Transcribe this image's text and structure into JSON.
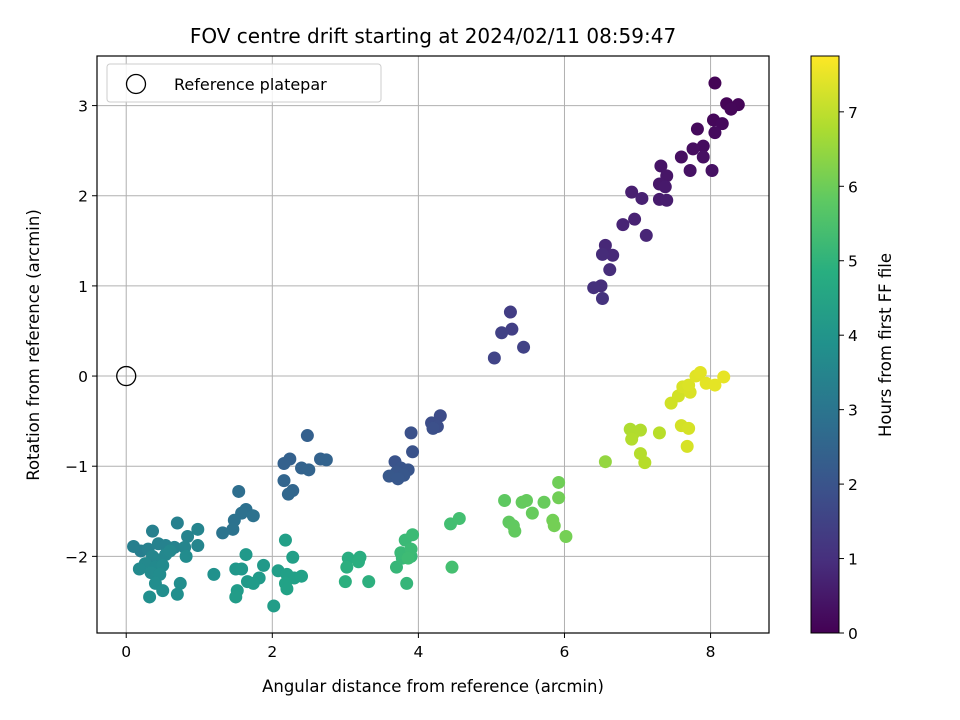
{
  "chart_data": {
    "type": "scatter",
    "title": "FOV centre drift starting at 2024/02/11 08:59:47",
    "xlabel": "Angular distance from reference (arcmin)",
    "ylabel": "Rotation from reference (arcmin)",
    "xlim": [
      -0.4,
      8.8
    ],
    "ylim": [
      -2.85,
      3.55
    ],
    "xticks": [
      0,
      2,
      4,
      6,
      8
    ],
    "yticks": [
      -2,
      -1,
      0,
      1,
      2,
      3
    ],
    "grid": true,
    "legend": {
      "placement": "upper-left",
      "entries": [
        "Reference platepar"
      ]
    },
    "reference_point": {
      "x": 0,
      "y": 0,
      "label": "Reference platepar"
    },
    "colorbar": {
      "label": "Hours from first FF file",
      "range": [
        0,
        7.75
      ],
      "ticks": [
        0,
        1,
        2,
        3,
        4,
        5,
        6,
        7
      ],
      "colormap": "viridis"
    },
    "points": [
      {
        "x": 8.06,
        "y": 3.25,
        "c": 0.05
      },
      {
        "x": 8.22,
        "y": 3.02,
        "c": 0.08
      },
      {
        "x": 8.38,
        "y": 3.01,
        "c": 0.1
      },
      {
        "x": 8.28,
        "y": 2.96,
        "c": 0.12
      },
      {
        "x": 8.04,
        "y": 2.84,
        "c": 0.15
      },
      {
        "x": 8.16,
        "y": 2.8,
        "c": 0.18
      },
      {
        "x": 7.82,
        "y": 2.74,
        "c": 0.2
      },
      {
        "x": 8.06,
        "y": 2.7,
        "c": 0.22
      },
      {
        "x": 7.9,
        "y": 2.55,
        "c": 0.25
      },
      {
        "x": 7.76,
        "y": 2.52,
        "c": 0.28
      },
      {
        "x": 7.6,
        "y": 2.43,
        "c": 0.3
      },
      {
        "x": 7.9,
        "y": 2.43,
        "c": 0.33
      },
      {
        "x": 8.02,
        "y": 2.28,
        "c": 0.36
      },
      {
        "x": 7.72,
        "y": 2.28,
        "c": 0.38
      },
      {
        "x": 7.32,
        "y": 2.33,
        "c": 0.42
      },
      {
        "x": 7.4,
        "y": 2.22,
        "c": 0.46
      },
      {
        "x": 7.3,
        "y": 2.13,
        "c": 0.5
      },
      {
        "x": 7.38,
        "y": 2.1,
        "c": 0.54
      },
      {
        "x": 7.3,
        "y": 1.96,
        "c": 0.58
      },
      {
        "x": 7.4,
        "y": 1.95,
        "c": 0.62
      },
      {
        "x": 6.92,
        "y": 2.04,
        "c": 0.66
      },
      {
        "x": 7.06,
        "y": 1.97,
        "c": 0.7
      },
      {
        "x": 6.96,
        "y": 1.74,
        "c": 0.74
      },
      {
        "x": 6.8,
        "y": 1.68,
        "c": 0.78
      },
      {
        "x": 7.12,
        "y": 1.56,
        "c": 0.82
      },
      {
        "x": 6.56,
        "y": 1.45,
        "c": 0.88
      },
      {
        "x": 6.66,
        "y": 1.34,
        "c": 0.92
      },
      {
        "x": 6.52,
        "y": 1.35,
        "c": 0.96
      },
      {
        "x": 6.62,
        "y": 1.18,
        "c": 1.0
      },
      {
        "x": 6.5,
        "y": 1.0,
        "c": 1.05
      },
      {
        "x": 6.4,
        "y": 0.98,
        "c": 1.1
      },
      {
        "x": 6.52,
        "y": 0.86,
        "c": 1.15
      },
      {
        "x": 5.26,
        "y": 0.71,
        "c": 1.4
      },
      {
        "x": 5.28,
        "y": 0.52,
        "c": 1.45
      },
      {
        "x": 5.14,
        "y": 0.48,
        "c": 1.48
      },
      {
        "x": 5.44,
        "y": 0.32,
        "c": 1.52
      },
      {
        "x": 5.04,
        "y": 0.2,
        "c": 1.56
      },
      {
        "x": 4.3,
        "y": -0.44,
        "c": 1.8
      },
      {
        "x": 4.18,
        "y": -0.52,
        "c": 1.83
      },
      {
        "x": 4.26,
        "y": -0.56,
        "c": 1.86
      },
      {
        "x": 4.2,
        "y": -0.58,
        "c": 1.89
      },
      {
        "x": 3.9,
        "y": -0.63,
        "c": 1.93
      },
      {
        "x": 3.92,
        "y": -0.84,
        "c": 1.97
      },
      {
        "x": 3.68,
        "y": -0.95,
        "c": 2.0
      },
      {
        "x": 3.76,
        "y": -1.02,
        "c": 2.03
      },
      {
        "x": 3.86,
        "y": -1.04,
        "c": 2.05
      },
      {
        "x": 3.7,
        "y": -1.07,
        "c": 2.08
      },
      {
        "x": 3.8,
        "y": -1.1,
        "c": 2.1
      },
      {
        "x": 3.6,
        "y": -1.11,
        "c": 2.12
      },
      {
        "x": 3.72,
        "y": -1.14,
        "c": 2.14
      },
      {
        "x": 2.48,
        "y": -0.66,
        "c": 2.35
      },
      {
        "x": 2.24,
        "y": -0.92,
        "c": 2.38
      },
      {
        "x": 2.16,
        "y": -0.97,
        "c": 2.4
      },
      {
        "x": 2.66,
        "y": -0.92,
        "c": 2.42
      },
      {
        "x": 2.74,
        "y": -0.93,
        "c": 2.44
      },
      {
        "x": 2.4,
        "y": -1.02,
        "c": 2.46
      },
      {
        "x": 2.5,
        "y": -1.04,
        "c": 2.48
      },
      {
        "x": 2.16,
        "y": -1.16,
        "c": 2.52
      },
      {
        "x": 2.28,
        "y": -1.27,
        "c": 2.55
      },
      {
        "x": 2.22,
        "y": -1.31,
        "c": 2.57
      },
      {
        "x": 1.54,
        "y": -1.28,
        "c": 2.8
      },
      {
        "x": 1.64,
        "y": -1.48,
        "c": 2.85
      },
      {
        "x": 1.58,
        "y": -1.52,
        "c": 2.88
      },
      {
        "x": 1.74,
        "y": -1.55,
        "c": 2.9
      },
      {
        "x": 1.48,
        "y": -1.6,
        "c": 2.92
      },
      {
        "x": 1.46,
        "y": -1.7,
        "c": 2.95
      },
      {
        "x": 1.32,
        "y": -1.74,
        "c": 2.98
      },
      {
        "x": 0.2,
        "y": -1.94,
        "c": 3.3
      },
      {
        "x": 0.1,
        "y": -1.89,
        "c": 3.32
      },
      {
        "x": 0.36,
        "y": -1.72,
        "c": 3.34
      },
      {
        "x": 0.7,
        "y": -1.63,
        "c": 3.36
      },
      {
        "x": 0.3,
        "y": -1.92,
        "c": 3.38
      },
      {
        "x": 0.44,
        "y": -1.86,
        "c": 3.4
      },
      {
        "x": 0.54,
        "y": -1.88,
        "c": 3.42
      },
      {
        "x": 0.66,
        "y": -1.9,
        "c": 3.44
      },
      {
        "x": 0.84,
        "y": -1.78,
        "c": 3.46
      },
      {
        "x": 0.98,
        "y": -1.7,
        "c": 3.48
      },
      {
        "x": 0.98,
        "y": -1.88,
        "c": 3.5
      },
      {
        "x": 0.8,
        "y": -1.9,
        "c": 3.52
      },
      {
        "x": 0.36,
        "y": -2.0,
        "c": 3.54
      },
      {
        "x": 0.44,
        "y": -2.04,
        "c": 3.56
      },
      {
        "x": 0.54,
        "y": -1.98,
        "c": 3.58
      },
      {
        "x": 0.6,
        "y": -1.94,
        "c": 3.6
      },
      {
        "x": 0.26,
        "y": -2.08,
        "c": 3.62
      },
      {
        "x": 0.4,
        "y": -2.12,
        "c": 3.64
      },
      {
        "x": 0.5,
        "y": -2.1,
        "c": 3.66
      },
      {
        "x": 0.18,
        "y": -2.14,
        "c": 3.68
      },
      {
        "x": 0.34,
        "y": -2.18,
        "c": 3.7
      },
      {
        "x": 0.46,
        "y": -2.2,
        "c": 3.72
      },
      {
        "x": 0.82,
        "y": -2.0,
        "c": 3.74
      },
      {
        "x": 0.4,
        "y": -2.3,
        "c": 3.76
      },
      {
        "x": 0.74,
        "y": -2.3,
        "c": 3.78
      },
      {
        "x": 0.5,
        "y": -2.38,
        "c": 3.8
      },
      {
        "x": 0.7,
        "y": -2.42,
        "c": 3.82
      },
      {
        "x": 0.32,
        "y": -2.45,
        "c": 3.84
      },
      {
        "x": 1.2,
        "y": -2.2,
        "c": 3.88
      },
      {
        "x": 1.5,
        "y": -2.14,
        "c": 4.1
      },
      {
        "x": 1.58,
        "y": -2.14,
        "c": 4.12
      },
      {
        "x": 1.64,
        "y": -1.98,
        "c": 4.14
      },
      {
        "x": 1.88,
        "y": -2.1,
        "c": 4.16
      },
      {
        "x": 1.82,
        "y": -2.24,
        "c": 4.18
      },
      {
        "x": 1.66,
        "y": -2.28,
        "c": 4.2
      },
      {
        "x": 1.74,
        "y": -2.3,
        "c": 4.22
      },
      {
        "x": 1.52,
        "y": -2.38,
        "c": 4.24
      },
      {
        "x": 1.5,
        "y": -2.45,
        "c": 4.26
      },
      {
        "x": 2.02,
        "y": -2.55,
        "c": 4.3
      },
      {
        "x": 2.08,
        "y": -2.16,
        "c": 4.32
      },
      {
        "x": 2.18,
        "y": -1.82,
        "c": 4.34
      },
      {
        "x": 2.28,
        "y": -2.01,
        "c": 4.36
      },
      {
        "x": 2.2,
        "y": -2.2,
        "c": 4.38
      },
      {
        "x": 2.3,
        "y": -2.24,
        "c": 4.4
      },
      {
        "x": 2.4,
        "y": -2.22,
        "c": 4.42
      },
      {
        "x": 2.18,
        "y": -2.3,
        "c": 4.44
      },
      {
        "x": 2.2,
        "y": -2.36,
        "c": 4.46
      },
      {
        "x": 3.04,
        "y": -2.02,
        "c": 4.8
      },
      {
        "x": 3.2,
        "y": -2.01,
        "c": 4.82
      },
      {
        "x": 3.18,
        "y": -2.06,
        "c": 4.84
      },
      {
        "x": 3.02,
        "y": -2.12,
        "c": 4.86
      },
      {
        "x": 3.0,
        "y": -2.28,
        "c": 4.88
      },
      {
        "x": 3.32,
        "y": -2.28,
        "c": 4.9
      },
      {
        "x": 3.84,
        "y": -2.3,
        "c": 5.1
      },
      {
        "x": 3.7,
        "y": -2.12,
        "c": 5.12
      },
      {
        "x": 3.78,
        "y": -2.02,
        "c": 5.14
      },
      {
        "x": 3.86,
        "y": -1.96,
        "c": 5.16
      },
      {
        "x": 3.9,
        "y": -2.0,
        "c": 5.18
      },
      {
        "x": 3.76,
        "y": -1.96,
        "c": 5.2
      },
      {
        "x": 3.82,
        "y": -1.82,
        "c": 5.22
      },
      {
        "x": 3.92,
        "y": -1.76,
        "c": 5.24
      },
      {
        "x": 3.9,
        "y": -1.92,
        "c": 5.26
      },
      {
        "x": 3.86,
        "y": -2.02,
        "c": 5.28
      },
      {
        "x": 4.44,
        "y": -1.64,
        "c": 5.4
      },
      {
        "x": 4.56,
        "y": -1.58,
        "c": 5.42
      },
      {
        "x": 4.46,
        "y": -2.12,
        "c": 5.44
      },
      {
        "x": 5.18,
        "y": -1.38,
        "c": 5.8
      },
      {
        "x": 5.24,
        "y": -1.62,
        "c": 5.82
      },
      {
        "x": 5.3,
        "y": -1.66,
        "c": 5.84
      },
      {
        "x": 5.32,
        "y": -1.72,
        "c": 5.86
      },
      {
        "x": 5.42,
        "y": -1.4,
        "c": 5.88
      },
      {
        "x": 5.48,
        "y": -1.38,
        "c": 5.9
      },
      {
        "x": 5.56,
        "y": -1.52,
        "c": 5.92
      },
      {
        "x": 5.72,
        "y": -1.4,
        "c": 5.94
      },
      {
        "x": 5.92,
        "y": -1.18,
        "c": 6.05
      },
      {
        "x": 5.92,
        "y": -1.35,
        "c": 6.07
      },
      {
        "x": 5.84,
        "y": -1.6,
        "c": 6.09
      },
      {
        "x": 5.86,
        "y": -1.66,
        "c": 6.11
      },
      {
        "x": 6.02,
        "y": -1.78,
        "c": 6.13
      },
      {
        "x": 6.56,
        "y": -0.95,
        "c": 6.5
      },
      {
        "x": 6.9,
        "y": -0.59,
        "c": 6.8
      },
      {
        "x": 6.94,
        "y": -0.64,
        "c": 6.82
      },
      {
        "x": 7.04,
        "y": -0.6,
        "c": 6.84
      },
      {
        "x": 6.92,
        "y": -0.7,
        "c": 6.86
      },
      {
        "x": 7.04,
        "y": -0.86,
        "c": 6.88
      },
      {
        "x": 7.1,
        "y": -0.96,
        "c": 6.9
      },
      {
        "x": 7.3,
        "y": -0.63,
        "c": 6.92
      },
      {
        "x": 7.46,
        "y": -0.3,
        "c": 7.2
      },
      {
        "x": 7.56,
        "y": -0.22,
        "c": 7.22
      },
      {
        "x": 7.6,
        "y": -0.55,
        "c": 7.24
      },
      {
        "x": 7.7,
        "y": -0.58,
        "c": 7.26
      },
      {
        "x": 7.68,
        "y": -0.78,
        "c": 7.28
      },
      {
        "x": 7.62,
        "y": -0.12,
        "c": 7.3
      },
      {
        "x": 7.72,
        "y": -0.18,
        "c": 7.32
      },
      {
        "x": 7.7,
        "y": -0.1,
        "c": 7.34
      },
      {
        "x": 7.8,
        "y": 0.0,
        "c": 7.4
      },
      {
        "x": 7.86,
        "y": 0.04,
        "c": 7.42
      },
      {
        "x": 7.94,
        "y": -0.08,
        "c": 7.44
      },
      {
        "x": 8.06,
        "y": -0.1,
        "c": 7.46
      },
      {
        "x": 8.18,
        "y": -0.01,
        "c": 7.48
      }
    ]
  }
}
